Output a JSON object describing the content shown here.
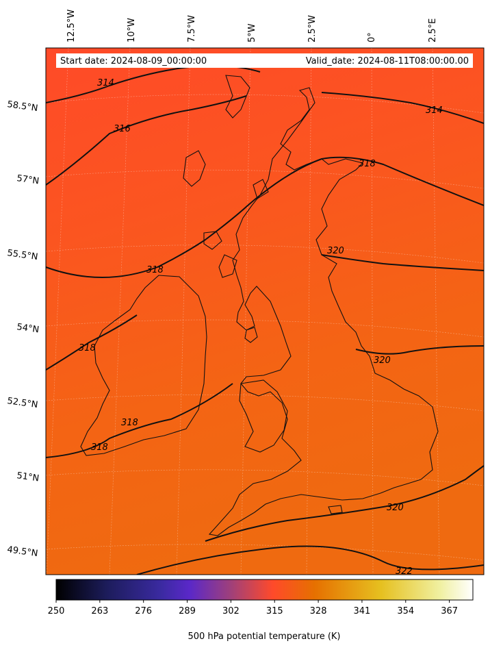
{
  "map": {
    "start_date": "Start date: 2024-08-09_00:00:00",
    "valid_date": "Valid_date: 2024-08-11T08:00:00.00",
    "lon_labels": [
      "12.5°W",
      "10°W",
      "7.5°W",
      "5°W",
      "2.5°W",
      "0°",
      "2.5°E"
    ],
    "lat_labels": [
      "58.5°N",
      "57°N",
      "55.5°N",
      "54°N",
      "52.5°N",
      "51°N",
      "49.5°N"
    ],
    "contour_labels": [
      {
        "text": "314"
      },
      {
        "text": "316"
      },
      {
        "text": "314"
      },
      {
        "text": "318"
      },
      {
        "text": "318"
      },
      {
        "text": "320"
      },
      {
        "text": "318"
      },
      {
        "text": "320"
      },
      {
        "text": "318"
      },
      {
        "text": "318"
      },
      {
        "text": "320"
      },
      {
        "text": "322"
      }
    ],
    "colors": {
      "field_high": "#f46010",
      "field_low": "#ff4a24",
      "contour": "#111111"
    }
  },
  "colorbar": {
    "ticks": [
      "250",
      "263",
      "276",
      "289",
      "302",
      "315",
      "328",
      "341",
      "354",
      "367"
    ],
    "title": "500 hPa potential temperature (K)",
    "range": [
      250,
      374
    ],
    "colormap": "CMRmap"
  }
}
